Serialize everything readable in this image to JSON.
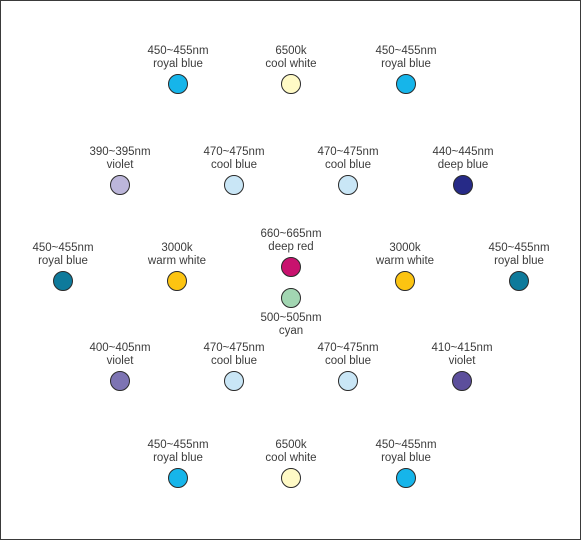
{
  "colors": {
    "royal_blue": "#16b5ea",
    "royal_blue_dark": "#0e7a9b",
    "cool_white": "#fffac6",
    "violet_light": "#bcb6da",
    "violet": "#7d74b3",
    "violet_dark": "#5c4f9c",
    "cool_blue": "#c9e6f6",
    "deep_blue": "#262a87",
    "warm_white": "#fcc411",
    "deep_red": "#c8126e",
    "cyan": "#a2d6b2"
  },
  "leds": [
    {
      "wavelength": "450~455nm",
      "name": "royal blue",
      "color": "royal_blue"
    },
    {
      "wavelength": "6500k",
      "name": "cool white",
      "color": "cool_white"
    },
    {
      "wavelength": "450~455nm",
      "name": "royal blue",
      "color": "royal_blue"
    },
    {
      "wavelength": "390~395nm",
      "name": "violet",
      "color": "violet_light"
    },
    {
      "wavelength": "470~475nm",
      "name": "cool blue",
      "color": "cool_blue"
    },
    {
      "wavelength": "470~475nm",
      "name": "cool blue",
      "color": "cool_blue"
    },
    {
      "wavelength": "440~445nm",
      "name": "deep blue",
      "color": "deep_blue"
    },
    {
      "wavelength": "450~455nm",
      "name": "royal blue",
      "color": "royal_blue_dark"
    },
    {
      "wavelength": "3000k",
      "name": "warm white",
      "color": "warm_white"
    },
    {
      "wavelength": "660~665nm",
      "name": "deep red",
      "color": "deep_red"
    },
    {
      "wavelength": "500~505nm",
      "name": "cyan",
      "color": "cyan"
    },
    {
      "wavelength": "3000k",
      "name": "warm white",
      "color": "warm_white"
    },
    {
      "wavelength": "450~455nm",
      "name": "royal blue",
      "color": "royal_blue_dark"
    },
    {
      "wavelength": "400~405nm",
      "name": "violet",
      "color": "violet"
    },
    {
      "wavelength": "470~475nm",
      "name": "cool blue",
      "color": "cool_blue"
    },
    {
      "wavelength": "470~475nm",
      "name": "cool blue",
      "color": "cool_blue"
    },
    {
      "wavelength": "410~415nm",
      "name": "violet",
      "color": "violet_dark"
    },
    {
      "wavelength": "450~455nm",
      "name": "royal blue",
      "color": "royal_blue"
    },
    {
      "wavelength": "6500k",
      "name": "cool white",
      "color": "cool_white"
    },
    {
      "wavelength": "450~455nm",
      "name": "royal blue",
      "color": "royal_blue"
    }
  ]
}
